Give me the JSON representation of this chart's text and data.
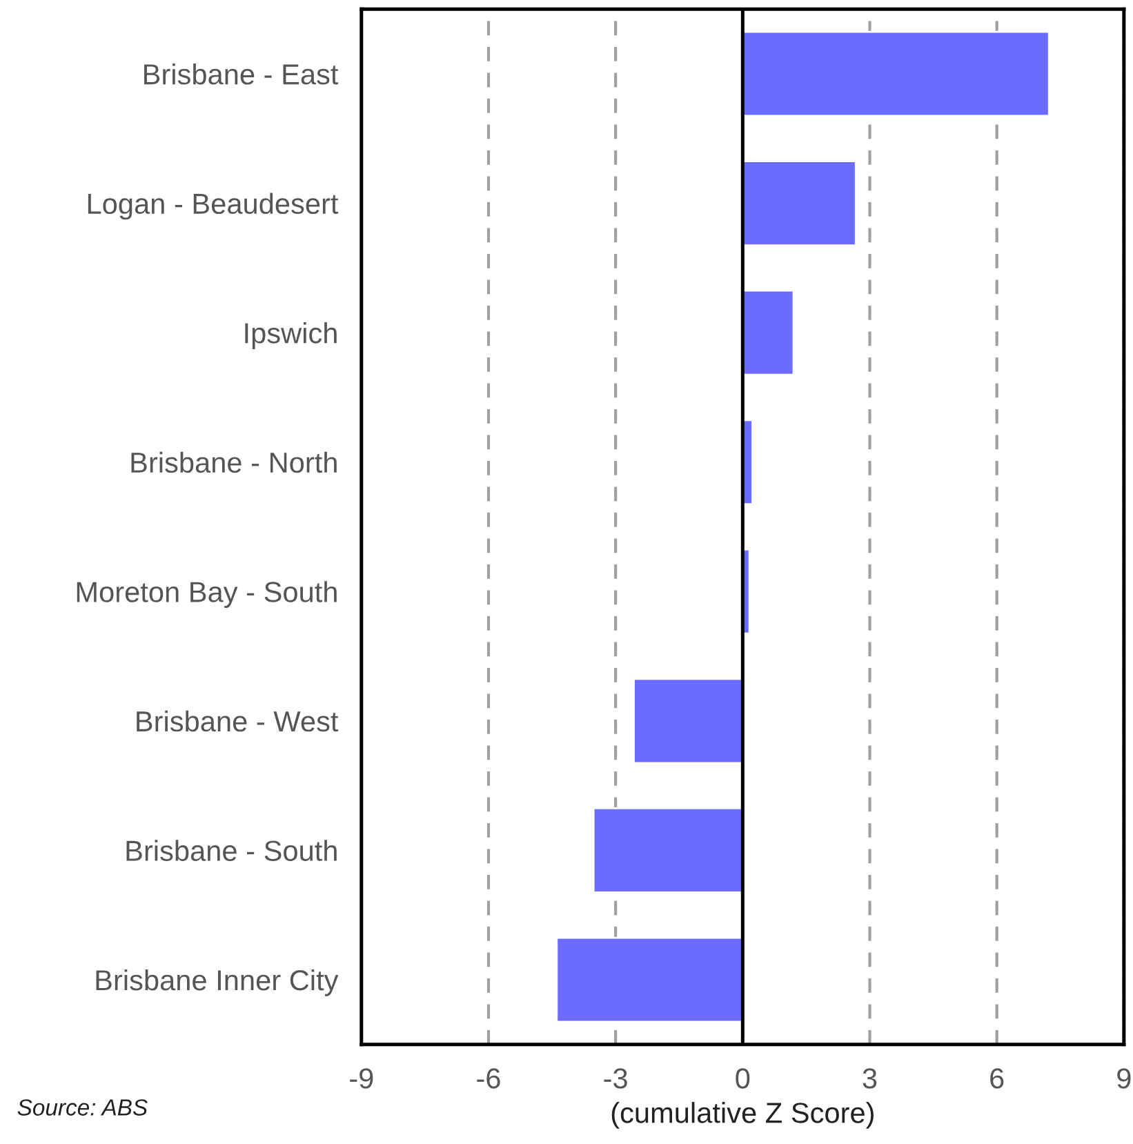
{
  "chart_data": {
    "type": "bar",
    "orientation": "horizontal",
    "categories": [
      "Brisbane - East",
      "Logan - Beaudesert",
      "Ipswich",
      "Brisbane - North",
      "Moreton Bay - South",
      "Brisbane - West",
      "Brisbane - South",
      "Brisbane Inner City"
    ],
    "values": [
      7.23,
      2.67,
      1.2,
      0.23,
      0.16,
      -2.57,
      -3.52,
      -4.39
    ],
    "color": "#6b6bff",
    "xlim": [
      -9,
      9
    ],
    "xticks": [
      -9,
      -6,
      -3,
      0,
      3,
      6,
      9
    ],
    "xlabel": "(cumulative Z Score)",
    "grid": "x",
    "ref_lines": [
      {
        "axis": "x",
        "value": 0,
        "color": "#000000",
        "line_style": "solid"
      }
    ],
    "annotations": [
      "Source: ABS"
    ]
  }
}
